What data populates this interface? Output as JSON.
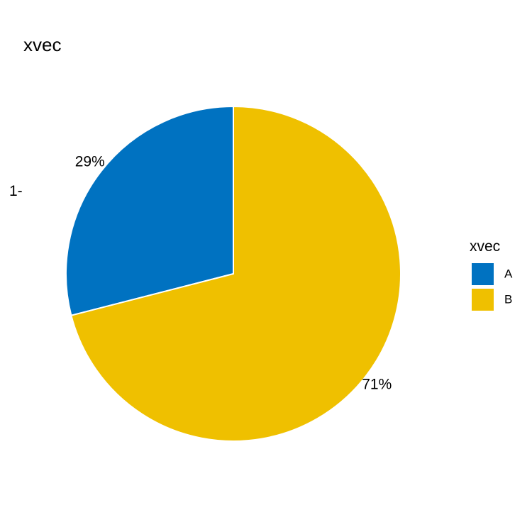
{
  "chart_data": {
    "type": "pie",
    "title": "xvec",
    "categories": [
      "A",
      "B"
    ],
    "values": [
      29,
      71
    ],
    "labels": [
      "29%",
      "71%"
    ],
    "colors": [
      "#0072C1",
      "#EFC000"
    ],
    "axis_tick": "1-",
    "legend": {
      "title": "xvec",
      "position": "right"
    }
  }
}
